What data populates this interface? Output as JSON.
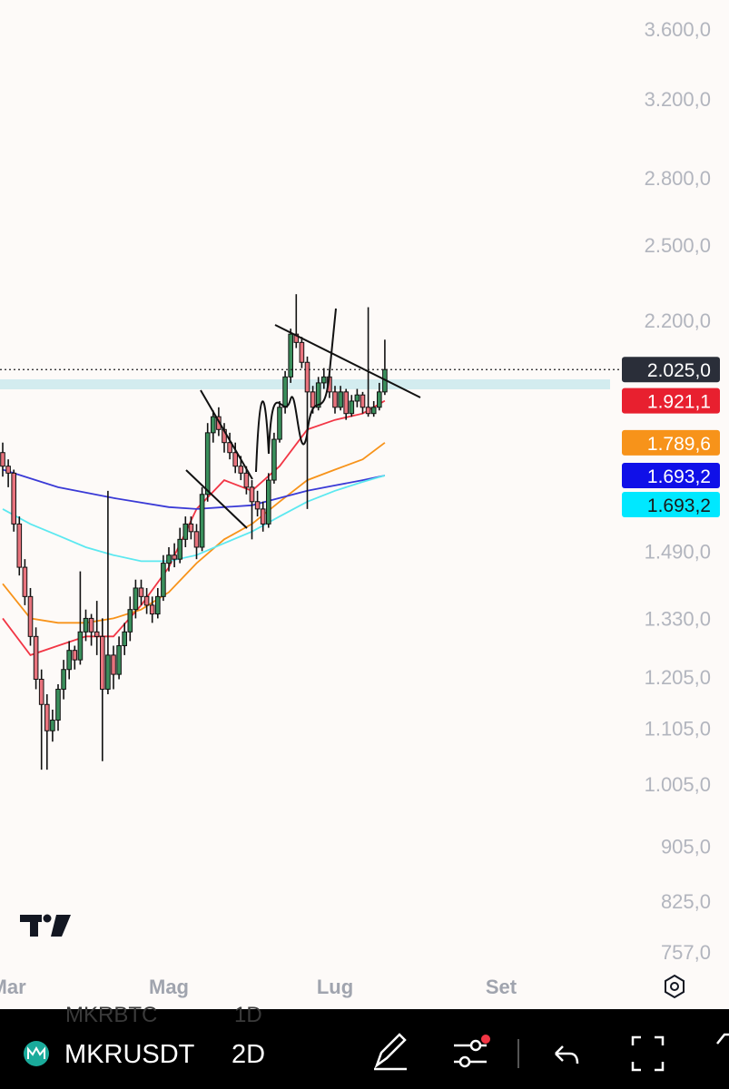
{
  "chart_data": {
    "type": "candlestick",
    "log_scale": true,
    "ylim": [
      733,
      3781
    ],
    "yticks": [
      {
        "value": 3600,
        "label": "3.600,0"
      },
      {
        "value": 3200,
        "label": "3.200,0"
      },
      {
        "value": 2800,
        "label": "2.800,0"
      },
      {
        "value": 2500,
        "label": "2.500,0"
      },
      {
        "value": 2200,
        "label": "2.200,0"
      },
      {
        "value": 1490,
        "label": "1.490,0"
      },
      {
        "value": 1330,
        "label": "1.330,0"
      },
      {
        "value": 1205,
        "label": "1.205,0"
      },
      {
        "value": 1105,
        "label": "1.105,0"
      },
      {
        "value": 1005,
        "label": "1.005,0"
      },
      {
        "value": 905,
        "label": "905,0"
      },
      {
        "value": 825,
        "label": "825,0"
      },
      {
        "value": 757,
        "label": "757,0"
      }
    ],
    "xticks": [
      {
        "value": 1,
        "label": "Mar"
      },
      {
        "value": 30,
        "label": "Mag"
      },
      {
        "value": 60,
        "label": "Lug"
      },
      {
        "value": 90,
        "label": "Set"
      }
    ],
    "up_color": "#3a8f5c",
    "down_color": "#e8737d",
    "ohlc": [
      [
        1760,
        1790,
        1690,
        1720
      ],
      [
        1720,
        1740,
        1660,
        1700
      ],
      [
        1700,
        1710,
        1540,
        1560
      ],
      [
        1560,
        1580,
        1430,
        1450
      ],
      [
        1450,
        1470,
        1360,
        1380
      ],
      [
        1380,
        1400,
        1270,
        1290
      ],
      [
        1290,
        1310,
        1180,
        1200
      ],
      [
        1200,
        1220,
        1030,
        1150
      ],
      [
        1150,
        1170,
        1030,
        1100
      ],
      [
        1100,
        1140,
        1080,
        1120
      ],
      [
        1120,
        1190,
        1100,
        1180
      ],
      [
        1180,
        1240,
        1160,
        1220
      ],
      [
        1220,
        1280,
        1200,
        1260
      ],
      [
        1260,
        1270,
        1220,
        1240
      ],
      [
        1240,
        1440,
        1230,
        1300
      ],
      [
        1300,
        1350,
        1280,
        1330
      ],
      [
        1330,
        1340,
        1270,
        1300
      ],
      [
        1300,
        1370,
        1250,
        1290
      ],
      [
        1290,
        1330,
        1045,
        1180
      ],
      [
        1180,
        1650,
        1170,
        1250
      ],
      [
        1250,
        1270,
        1180,
        1210
      ],
      [
        1210,
        1290,
        1200,
        1270
      ],
      [
        1270,
        1320,
        1250,
        1300
      ],
      [
        1300,
        1380,
        1280,
        1350
      ],
      [
        1350,
        1420,
        1330,
        1400
      ],
      [
        1400,
        1420,
        1360,
        1380
      ],
      [
        1380,
        1400,
        1340,
        1360
      ],
      [
        1360,
        1380,
        1320,
        1340
      ],
      [
        1340,
        1400,
        1330,
        1380
      ],
      [
        1380,
        1480,
        1370,
        1460
      ],
      [
        1460,
        1500,
        1440,
        1480
      ],
      [
        1480,
        1510,
        1450,
        1470
      ],
      [
        1470,
        1550,
        1460,
        1520
      ],
      [
        1520,
        1580,
        1500,
        1560
      ],
      [
        1560,
        1580,
        1520,
        1540
      ],
      [
        1540,
        1560,
        1470,
        1500
      ],
      [
        1500,
        1660,
        1490,
        1640
      ],
      [
        1640,
        1850,
        1620,
        1820
      ],
      [
        1820,
        1890,
        1790,
        1870
      ],
      [
        1870,
        1900,
        1810,
        1830
      ],
      [
        1830,
        1850,
        1760,
        1790
      ],
      [
        1790,
        1820,
        1740,
        1760
      ],
      [
        1760,
        1790,
        1700,
        1720
      ],
      [
        1720,
        1750,
        1680,
        1700
      ],
      [
        1700,
        1720,
        1640,
        1660
      ],
      [
        1660,
        1680,
        1520,
        1620
      ],
      [
        1620,
        1650,
        1580,
        1600
      ],
      [
        1600,
        1620,
        1540,
        1560
      ],
      [
        1560,
        1700,
        1550,
        1680
      ],
      [
        1680,
        1820,
        1670,
        1800
      ],
      [
        1800,
        1920,
        1790,
        1900
      ],
      [
        1900,
        2020,
        1880,
        2000
      ],
      [
        2000,
        2170,
        1980,
        2150
      ],
      [
        2150,
        2300,
        2100,
        2120
      ],
      [
        2120,
        2140,
        2030,
        2050
      ],
      [
        2050,
        2070,
        1600,
        1950
      ],
      [
        1950,
        1970,
        1880,
        1900
      ],
      [
        1900,
        2000,
        1890,
        1980
      ],
      [
        1980,
        2030,
        1960,
        2000
      ],
      [
        2000,
        2010,
        1930,
        1950
      ],
      [
        1950,
        1970,
        1880,
        1900
      ],
      [
        1900,
        1970,
        1890,
        1950
      ],
      [
        1950,
        1960,
        1860,
        1880
      ],
      [
        1880,
        1940,
        1870,
        1920
      ],
      [
        1920,
        1960,
        1900,
        1940
      ],
      [
        1940,
        1950,
        1880,
        1900
      ],
      [
        1900,
        2250,
        1870,
        1880
      ],
      [
        1880,
        1920,
        1870,
        1900
      ],
      [
        1900,
        1980,
        1890,
        1950
      ],
      [
        1950,
        2130,
        1940,
        2025
      ]
    ],
    "moving_averages": [
      {
        "color": "#f23645",
        "x": [
          0,
          5,
          10,
          15,
          20,
          25,
          30,
          35,
          40,
          45,
          50,
          55,
          60,
          65,
          69
        ],
        "values": [
          1330,
          1250,
          1270,
          1290,
          1290,
          1360,
          1450,
          1600,
          1680,
          1650,
          1720,
          1830,
          1860,
          1880,
          1921.1
        ]
      },
      {
        "color": "#f7931a",
        "x": [
          0,
          5,
          10,
          15,
          20,
          25,
          30,
          35,
          40,
          45,
          50,
          55,
          60,
          65,
          69
        ],
        "values": [
          1410,
          1330,
          1320,
          1320,
          1330,
          1350,
          1390,
          1460,
          1520,
          1560,
          1620,
          1680,
          1710,
          1740,
          1789.6
        ]
      },
      {
        "color": "#3a3ad6",
        "x": [
          0,
          10,
          20,
          30,
          35,
          40,
          45,
          50,
          55,
          60,
          65,
          69
        ],
        "values": [
          1710,
          1660,
          1630,
          1605,
          1600,
          1605,
          1610,
          1630,
          1650,
          1665,
          1680,
          1693.2
        ]
      },
      {
        "color": "#5ce8f0",
        "x": [
          0,
          5,
          10,
          15,
          20,
          25,
          30,
          35,
          40,
          45,
          50,
          55,
          60,
          65,
          69
        ],
        "values": [
          1600,
          1560,
          1530,
          1500,
          1480,
          1465,
          1465,
          1480,
          1510,
          1540,
          1580,
          1620,
          1650,
          1675,
          1693.2
        ]
      }
    ],
    "price_tags": [
      {
        "value": 2025,
        "label": "2.025,0",
        "color": "#2a2e39",
        "text_color": "#ffffff"
      },
      {
        "value": 1921.1,
        "label": "1.921,1",
        "color": "#e8202f",
        "text_color": "#ffffff"
      },
      {
        "value": 1789.6,
        "label": "1.789,6",
        "color": "#f7931a",
        "text_color": "#ffffff"
      },
      {
        "value": 1693.2,
        "label": "1.693,2",
        "color": "#1010e8",
        "text_color": "#ffffff"
      },
      {
        "value": 1693.2,
        "label": "1.693,2",
        "color": "#00e8ff",
        "text_color": "#1a1a1a"
      }
    ]
  },
  "toolbar": {
    "symbol": "MKRUSDT",
    "interval": "2D",
    "prev_symbol": "MKRBTC",
    "prev_interval": "1D"
  }
}
